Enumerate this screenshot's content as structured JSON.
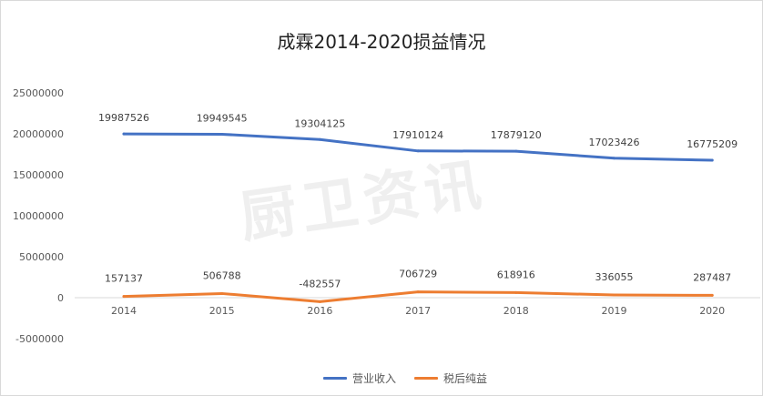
{
  "chart_data": {
    "type": "line",
    "title": "成霖2014-2020损益情况",
    "categories": [
      "2014",
      "2015",
      "2016",
      "2017",
      "2018",
      "2019",
      "2020"
    ],
    "ylim": [
      -5000000,
      25000000
    ],
    "y_ticks": [
      25000000,
      20000000,
      15000000,
      10000000,
      5000000,
      0,
      -5000000
    ],
    "grid": false,
    "legend_position": "bottom",
    "series": [
      {
        "name": "营业收入",
        "color": "#4472C4",
        "values": [
          19987526,
          19949545,
          19304125,
          17910124,
          17879120,
          17023426,
          16775209
        ]
      },
      {
        "name": "税后纯益",
        "color": "#ED7D31",
        "values": [
          157137,
          506788,
          -482557,
          706729,
          618916,
          336055,
          287487
        ]
      }
    ]
  },
  "watermark": "厨卫资讯"
}
